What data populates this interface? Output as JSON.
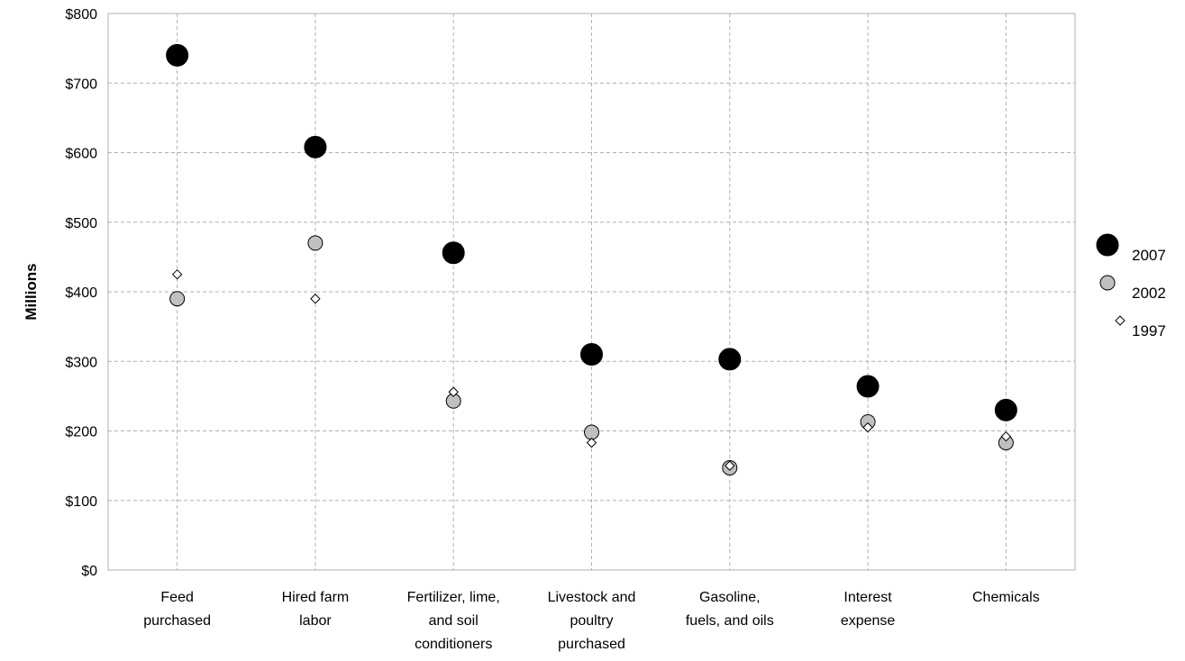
{
  "chart_data": {
    "type": "scatter",
    "title": "",
    "xlabel": "",
    "ylabel": "Millions",
    "ylim": [
      0,
      800
    ],
    "yticks": [
      {
        "value": 0,
        "label": "$0"
      },
      {
        "value": 100,
        "label": "$100"
      },
      {
        "value": 200,
        "label": "$200"
      },
      {
        "value": 300,
        "label": "$300"
      },
      {
        "value": 400,
        "label": "$400"
      },
      {
        "value": 500,
        "label": "$500"
      },
      {
        "value": 600,
        "label": "$600"
      },
      {
        "value": 700,
        "label": "$700"
      },
      {
        "value": 800,
        "label": "$800"
      }
    ],
    "categories": [
      [
        "Feed",
        "purchased"
      ],
      [
        "Hired farm",
        "labor"
      ],
      [
        "Fertilizer, lime,",
        "and soil",
        "conditioners"
      ],
      [
        "Livestock and",
        "poultry",
        "purchased"
      ],
      [
        "Gasoline,",
        "fuels, and oils"
      ],
      [
        "Interest",
        "expense"
      ],
      [
        "Chemicals"
      ]
    ],
    "grid": true,
    "legend_position": "right",
    "series": [
      {
        "name": "2007",
        "marker": "large-circle",
        "color": "#000000",
        "values": [
          740,
          608,
          456,
          310,
          303,
          264,
          230
        ]
      },
      {
        "name": "2002",
        "marker": "circle",
        "color": "#c0c0c0",
        "values": [
          390,
          470,
          243,
          198,
          147,
          213,
          183
        ]
      },
      {
        "name": "1997",
        "marker": "diamond",
        "color": "#ffffff",
        "values": [
          425,
          390,
          256,
          183,
          150,
          205,
          192
        ]
      }
    ]
  }
}
